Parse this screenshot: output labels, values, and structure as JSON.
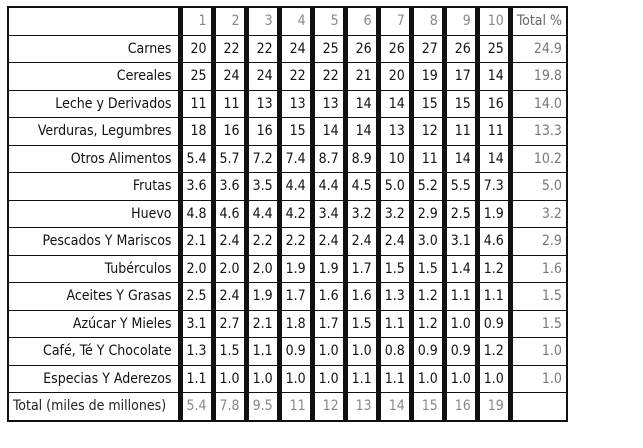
{
  "table": {
    "columns": [
      "1",
      "2",
      "3",
      "4",
      "5",
      "6",
      "7",
      "8",
      "9",
      "10"
    ],
    "total_header": "Total %",
    "rows": [
      {
        "label": "Carnes",
        "values": [
          "20",
          "22",
          "22",
          "24",
          "25",
          "26",
          "26",
          "27",
          "26",
          "25"
        ],
        "total": "24.9"
      },
      {
        "label": "Cereales",
        "values": [
          "25",
          "24",
          "24",
          "22",
          "22",
          "21",
          "20",
          "19",
          "17",
          "14"
        ],
        "total": "19.8"
      },
      {
        "label": "Leche y Derivados",
        "values": [
          "11",
          "11",
          "13",
          "13",
          "13",
          "14",
          "14",
          "15",
          "15",
          "16"
        ],
        "total": "14.0"
      },
      {
        "label": "Verduras, Legumbres",
        "values": [
          "18",
          "16",
          "16",
          "15",
          "14",
          "14",
          "13",
          "12",
          "11",
          "11"
        ],
        "total": "13.3"
      },
      {
        "label": "Otros Alimentos",
        "values": [
          "5.4",
          "5.7",
          "7.2",
          "7.4",
          "8.7",
          "8.9",
          "10",
          "11",
          "14",
          "14"
        ],
        "total": "10.2"
      },
      {
        "label": "Frutas",
        "values": [
          "3.6",
          "3.6",
          "3.5",
          "4.4",
          "4.4",
          "4.5",
          "5.0",
          "5.2",
          "5.5",
          "7.3"
        ],
        "total": "5.0"
      },
      {
        "label": "Huevo",
        "values": [
          "4.8",
          "4.6",
          "4.4",
          "4.2",
          "3.4",
          "3.2",
          "3.2",
          "2.9",
          "2.5",
          "1.9"
        ],
        "total": "3.2"
      },
      {
        "label": "Pescados Y Mariscos",
        "values": [
          "2.1",
          "2.4",
          "2.2",
          "2.2",
          "2.4",
          "2.4",
          "2.4",
          "3.0",
          "3.1",
          "4.6"
        ],
        "total": "2.9"
      },
      {
        "label": "Tubérculos",
        "values": [
          "2.0",
          "2.0",
          "2.0",
          "1.9",
          "1.9",
          "1.7",
          "1.5",
          "1.5",
          "1.4",
          "1.2"
        ],
        "total": "1.6"
      },
      {
        "label": "Aceites Y Grasas",
        "values": [
          "2.5",
          "2.4",
          "1.9",
          "1.7",
          "1.6",
          "1.6",
          "1.3",
          "1.2",
          "1.1",
          "1.1"
        ],
        "total": "1.5"
      },
      {
        "label": "Azúcar Y Mieles",
        "values": [
          "3.1",
          "2.7",
          "2.1",
          "1.8",
          "1.7",
          "1.5",
          "1.1",
          "1.2",
          "1.0",
          "0.9"
        ],
        "total": "1.5"
      },
      {
        "label": "Café, Té Y Chocolate",
        "values": [
          "1.3",
          "1.5",
          "1.1",
          "0.9",
          "1.0",
          "1.0",
          "0.8",
          "0.9",
          "0.9",
          "1.2"
        ],
        "total": "1.0"
      },
      {
        "label": "Especias Y Aderezos",
        "values": [
          "1.1",
          "1.0",
          "1.0",
          "1.0",
          "1.0",
          "1.1",
          "1.1",
          "1.0",
          "1.0",
          "1.0"
        ],
        "total": "1.0"
      }
    ],
    "footer": {
      "label": "Total (miles de millones)",
      "values": [
        "5.4",
        "7.8",
        "9.5",
        "11",
        "12",
        "13",
        "14",
        "15",
        "16",
        "19"
      ]
    }
  }
}
